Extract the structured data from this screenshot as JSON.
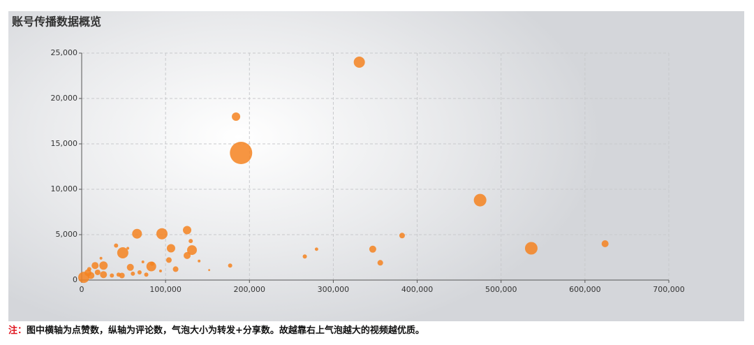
{
  "chart_data": {
    "type": "scatter",
    "title": "账号传播数据概览",
    "note_prefix": "注：",
    "note": "图中横轴为点赞数，纵轴为评论数，气泡大小为转发+分享数。故越靠右上气泡越大的视频越优质。",
    "color": "#f58220",
    "grid": true,
    "xlim": [
      0,
      700000
    ],
    "ylim": [
      0,
      25000
    ],
    "xticks": [
      0,
      {
        "value": 100000,
        "label": "100,000"
      },
      {
        "value": 200000,
        "label": "200,000"
      },
      {
        "value": 300000,
        "label": "300,000"
      },
      {
        "value": 400000,
        "label": "400,000"
      },
      {
        "value": 500000,
        "label": "500,000"
      },
      {
        "value": 600000,
        "label": "600,000"
      },
      {
        "value": 700000,
        "label": "700,000"
      }
    ],
    "yticks": [
      0,
      {
        "value": 5000,
        "label": "5,000"
      },
      {
        "value": 10000,
        "label": "10,000"
      },
      {
        "value": 15000,
        "label": "15,000"
      },
      {
        "value": 20000,
        "label": "20,000"
      },
      {
        "value": 25000,
        "label": "25,000"
      }
    ],
    "x": [
      331000,
      184000,
      190000,
      475000,
      536000,
      624000,
      382000,
      347000,
      356000,
      266000,
      280000,
      66000,
      95700,
      125700,
      131500,
      106500,
      130000,
      83000,
      49000,
      58000,
      125700,
      112000,
      104000,
      177000,
      140000,
      152000,
      41000,
      26000,
      26000,
      16000,
      7500,
      2500,
      11000,
      19000,
      44000,
      69000,
      77000,
      84000,
      36000,
      48000,
      61000,
      73000,
      94000,
      55000,
      9000,
      23000
    ],
    "values": [
      24000,
      18000,
      14000,
      8800,
      3500,
      4000,
      4900,
      3400,
      1900,
      2600,
      3400,
      5100,
      5100,
      5500,
      3300,
      3500,
      4300,
      1500,
      3000,
      1400,
      2700,
      1200,
      2200,
      1600,
      2100,
      1100,
      3800,
      600,
      1600,
      1600,
      800,
      300,
      500,
      850,
      600,
      850,
      600,
      1800,
      500,
      500,
      700,
      2000,
      1000,
      3500,
      1200,
      2400
    ],
    "sizes": [
      640,
      360,
      2560,
      810,
      810,
      250,
      160,
      250,
      160,
      90,
      60,
      490,
      640,
      360,
      490,
      360,
      90,
      490,
      640,
      250,
      250,
      160,
      160,
      90,
      40,
      20,
      90,
      250,
      360,
      250,
      250,
      640,
      250,
      160,
      90,
      90,
      90,
      90,
      90,
      160,
      90,
      40,
      40,
      40,
      90,
      40
    ]
  }
}
